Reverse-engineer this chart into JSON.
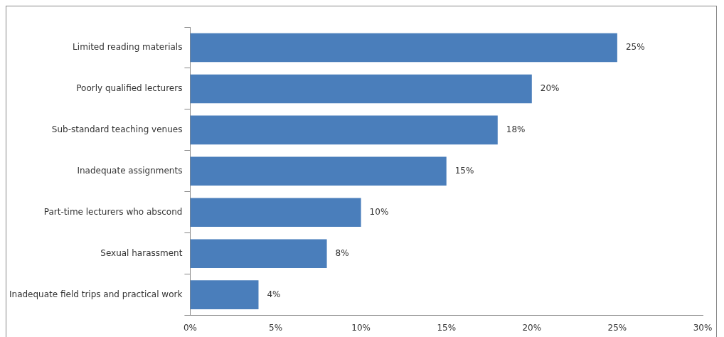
{
  "chart_data": {
    "type": "bar",
    "orientation": "horizontal",
    "categories": [
      "Limited reading materials",
      "Poorly qualified lecturers",
      "Sub-standard teaching venues",
      "Inadequate assignments",
      "Part-time lecturers who abscond",
      "Sexual harassment",
      "Inadequate field trips and practical work"
    ],
    "values": [
      25,
      20,
      18,
      15,
      10,
      8,
      4
    ],
    "value_labels": [
      "25%",
      "20%",
      "18%",
      "15%",
      "10%",
      "8%",
      "4%"
    ],
    "color": "#4a7ebb",
    "xlim": [
      0,
      30
    ],
    "xticks": [
      {
        "value": 0,
        "label": "0%"
      },
      {
        "value": 5,
        "label": "5%"
      },
      {
        "value": 10,
        "label": "10%"
      },
      {
        "value": 15,
        "label": "15%"
      },
      {
        "value": 20,
        "label": "20%"
      },
      {
        "value": 25,
        "label": "25%"
      },
      {
        "value": 30,
        "label": "30%"
      }
    ]
  }
}
